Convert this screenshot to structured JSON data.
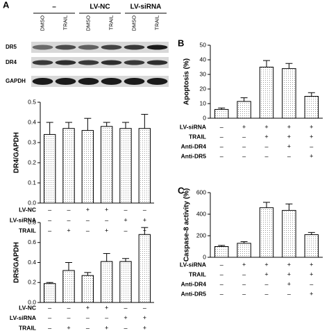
{
  "blot": {
    "panel": "A",
    "groups": [
      "–",
      "LV-NC",
      "LV-siRNA"
    ],
    "lanes": [
      "DMSO",
      "TRAIL",
      "DMSO",
      "TRAIL",
      "DMSO",
      "TRAIL"
    ],
    "rows": [
      "DR5",
      "DR4",
      "GAPDH"
    ]
  },
  "chart_data": [
    {
      "type": "bar",
      "ylabel": "DR4/GAPDH",
      "values": [
        0.34,
        0.37,
        0.36,
        0.38,
        0.37,
        0.37
      ],
      "errors": [
        0.06,
        0.03,
        0.06,
        0.02,
        0.03,
        0.07
      ],
      "ylim": [
        0,
        0.5
      ],
      "yticks": [
        {
          "value": 0,
          "label": "0.0"
        },
        {
          "value": 0.1,
          "label": "0.1"
        },
        {
          "value": 0.2,
          "label": "0.2"
        },
        {
          "value": 0.3,
          "label": "0.3"
        },
        {
          "value": 0.4,
          "label": "0.4"
        },
        {
          "value": 0.5,
          "label": "0.5"
        }
      ],
      "conditions": [
        {
          "name": "LV-NC",
          "values": [
            "–",
            "–",
            "+",
            "+",
            "–",
            "–"
          ]
        },
        {
          "name": "LV-siRNA",
          "values": [
            "–",
            "–",
            "–",
            "–",
            "+",
            "+"
          ]
        },
        {
          "name": "TRAIL",
          "values": [
            "–",
            "+",
            "–",
            "+",
            "–",
            "+"
          ]
        }
      ]
    },
    {
      "type": "bar",
      "ylabel": "DR5/GAPDH",
      "values": [
        0.19,
        0.32,
        0.27,
        0.41,
        0.41,
        0.68
      ],
      "errors": [
        0.01,
        0.08,
        0.03,
        0.08,
        0.03,
        0.07
      ],
      "ylim": [
        0,
        0.8
      ],
      "yticks": [
        {
          "value": 0,
          "label": "0.0"
        },
        {
          "value": 0.2,
          "label": "0.2"
        },
        {
          "value": 0.4,
          "label": "0.4"
        },
        {
          "value": 0.6,
          "label": "0.6"
        },
        {
          "value": 0.8,
          "label": "0.8"
        }
      ],
      "conditions": [
        {
          "name": "LV-NC",
          "values": [
            "–",
            "–",
            "+",
            "+",
            "–",
            "–"
          ]
        },
        {
          "name": "LV-siRNA",
          "values": [
            "–",
            "–",
            "–",
            "–",
            "+",
            "+"
          ]
        },
        {
          "name": "TRAIL",
          "values": [
            "–",
            "+",
            "–",
            "+",
            "–",
            "+"
          ]
        }
      ]
    },
    {
      "type": "bar",
      "panel": "B",
      "ylabel": "Apoptosis (%)",
      "values": [
        6,
        11.5,
        35,
        34,
        15
      ],
      "errors": [
        1,
        2.5,
        4.5,
        3.5,
        2.5
      ],
      "ylim": [
        0,
        50
      ],
      "yticks": [
        0,
        10,
        20,
        30,
        40,
        50
      ],
      "conditions": [
        {
          "name": "LV-siRNA",
          "values": [
            "–",
            "+",
            "+",
            "+",
            "+"
          ]
        },
        {
          "name": "TRAIL",
          "values": [
            "–",
            "–",
            "+",
            "+",
            "+"
          ]
        },
        {
          "name": "Anti-DR4",
          "values": [
            "–",
            "–",
            "–",
            "+",
            "–"
          ]
        },
        {
          "name": "Anti-DR5",
          "values": [
            "–",
            "–",
            "–",
            "–",
            "+"
          ]
        }
      ]
    },
    {
      "type": "bar",
      "panel": "C",
      "ylabel": "Caspase-8 activity (%)",
      "values": [
        100,
        130,
        460,
        435,
        210
      ],
      "errors": [
        10,
        15,
        50,
        60,
        20
      ],
      "ylim": [
        0,
        600
      ],
      "yticks": [
        0,
        200,
        400,
        600
      ],
      "conditions": [
        {
          "name": "LV-siRNA",
          "values": [
            "–",
            "+",
            "+",
            "+",
            "+"
          ]
        },
        {
          "name": "TRAIL",
          "values": [
            "–",
            "–",
            "+",
            "+",
            "+"
          ]
        },
        {
          "name": "Anti-DR4",
          "values": [
            "–",
            "–",
            "–",
            "+",
            "–"
          ]
        },
        {
          "name": "Anti-DR5",
          "values": [
            "–",
            "–",
            "–",
            "–",
            "+"
          ]
        }
      ]
    }
  ]
}
